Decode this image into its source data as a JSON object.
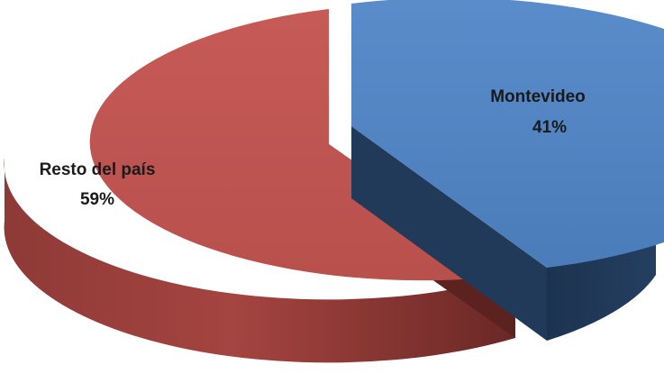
{
  "chart_data": {
    "type": "pie",
    "title": "",
    "slices": [
      {
        "label": "Montevideo",
        "value": 41,
        "percent_label": "41%",
        "color": "#4f81bd",
        "exploded": true
      },
      {
        "label": "Resto del país",
        "value": 59,
        "percent_label": "59%",
        "color": "#c0504d",
        "exploded": false
      }
    ],
    "style": "3d-exploded",
    "legend": "none"
  }
}
